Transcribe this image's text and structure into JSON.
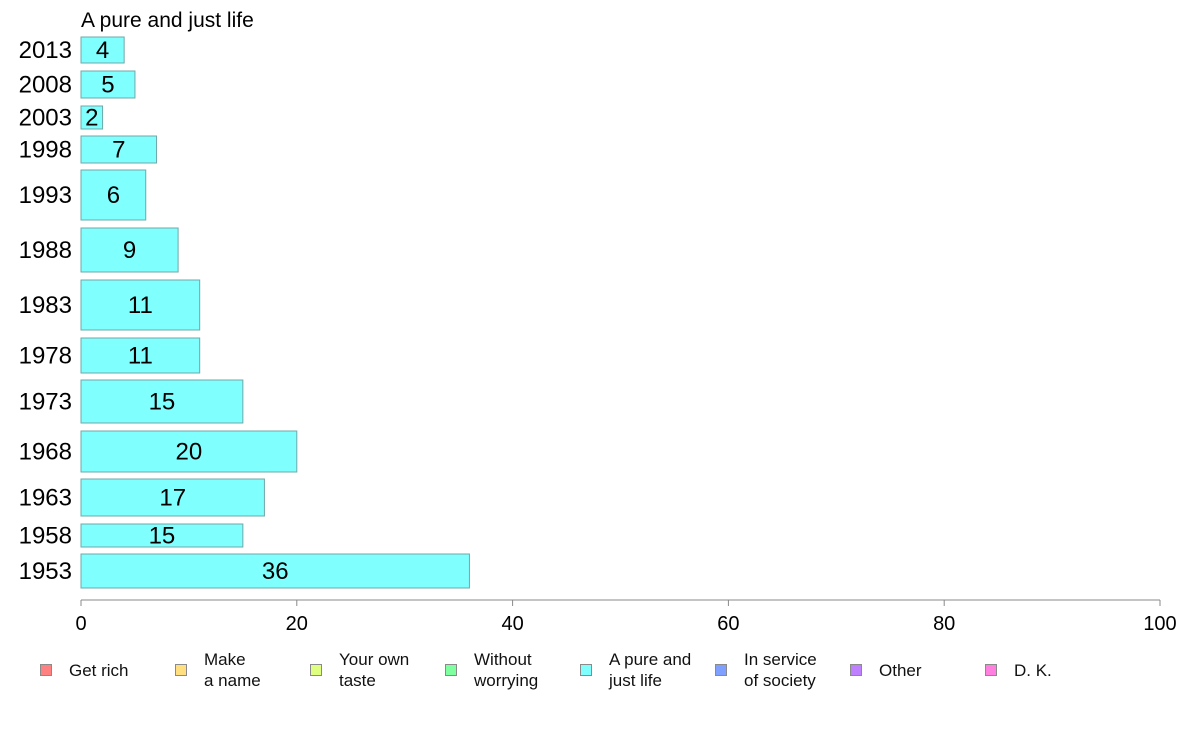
{
  "chart_data": {
    "type": "bar",
    "orientation": "horizontal",
    "title": "A pure and just life",
    "categories": [
      "2013",
      "2008",
      "2003",
      "1998",
      "1993",
      "1988",
      "1983",
      "1978",
      "1973",
      "1968",
      "1963",
      "1958",
      "1953"
    ],
    "series": [
      {
        "name": "A pure and just life",
        "color": "#80ffff",
        "values": [
          4,
          5,
          2,
          7,
          6,
          9,
          11,
          11,
          15,
          20,
          17,
          15,
          36
        ]
      }
    ],
    "xlim": [
      0,
      100
    ],
    "x_ticks": [
      0,
      20,
      40,
      60,
      80,
      100
    ],
    "grid": false,
    "legend_position": "bottom",
    "legend": [
      {
        "label": "Get rich",
        "color": "#ff8080"
      },
      {
        "label": "Make\na name",
        "color": "#ffdf80"
      },
      {
        "label": "Your own\ntaste",
        "color": "#dfff80"
      },
      {
        "label": "Without\nworrying",
        "color": "#80ffa0"
      },
      {
        "label": "A pure and\njust life",
        "color": "#80ffff"
      },
      {
        "label": "In service\nof society",
        "color": "#80a0ff"
      },
      {
        "label": "Other",
        "color": "#bf80ff"
      },
      {
        "label": "D. K.",
        "color": "#ff80df"
      }
    ]
  }
}
